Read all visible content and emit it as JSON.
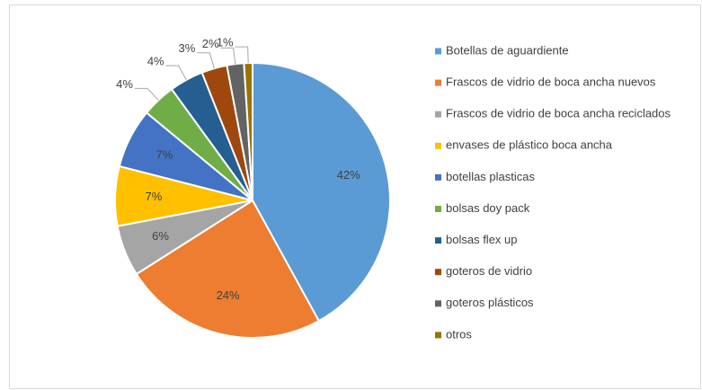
{
  "chart_data": {
    "type": "pie",
    "categories": [
      "Botellas de aguardiente",
      "Frascos de vidrio de boca ancha nuevos",
      "Frascos de vidrio de boca ancha reciclados",
      "envases de plástico boca ancha",
      "botellas plasticas",
      "bolsas doy pack",
      "bolsas flex up",
      "goteros de vidrio",
      "goteros plásticos",
      "otros"
    ],
    "values": [
      42,
      24,
      6,
      7,
      7,
      4,
      4,
      3,
      2,
      1
    ],
    "value_labels": [
      "42%",
      "24%",
      "6%",
      "7%",
      "7%",
      "4%",
      "4%",
      "3%",
      "2%",
      "1%"
    ],
    "colors": [
      "#5b9bd5",
      "#ed7d31",
      "#a5a5a5",
      "#ffc000",
      "#4472c4",
      "#70ad47",
      "#255e91",
      "#9e480e",
      "#636363",
      "#997300"
    ],
    "legend": "right"
  }
}
